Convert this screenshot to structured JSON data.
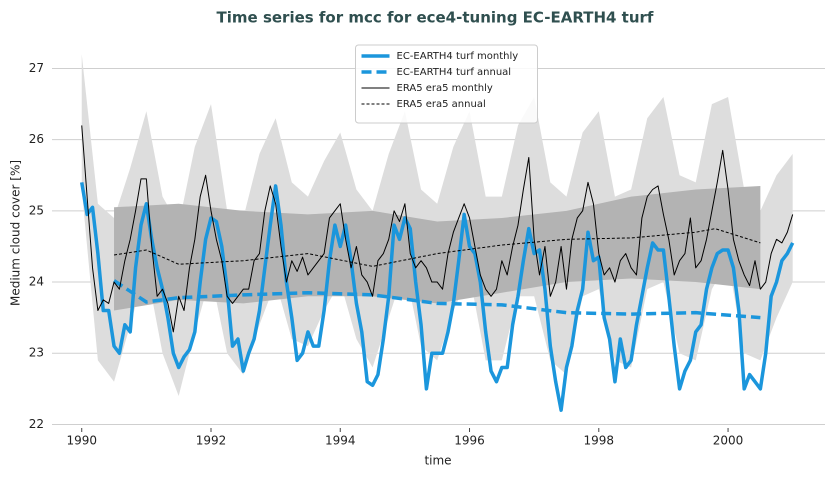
{
  "chart_data": {
    "type": "line",
    "title": "Time series for mcc for ece4-tuning EC-EARTH4 turf",
    "x_label": "time",
    "y_label": "Medium cloud cover [%]",
    "xlim": [
      1989.54,
      2001.5
    ],
    "ylim": [
      21.95,
      27.4
    ],
    "xticks": [
      1990,
      1992,
      1994,
      1996,
      1998,
      2000
    ],
    "yticks": [
      22,
      23,
      24,
      25,
      26,
      27
    ],
    "grid": true,
    "legend": "upper center",
    "bands": [
      {
        "color": "#dddddd",
        "x": [
          1990,
          1990.25,
          1990.5,
          1990.75,
          1991,
          1991.25,
          1991.5,
          1991.75,
          1992,
          1992.25,
          1992.5,
          1992.75,
          1993,
          1993.25,
          1993.5,
          1993.75,
          1994,
          1994.25,
          1994.5,
          1994.75,
          1995,
          1995.25,
          1995.5,
          1995.75,
          1996,
          1996.25,
          1996.5,
          1996.75,
          1997,
          1997.25,
          1997.5,
          1997.75,
          1998,
          1998.25,
          1998.5,
          1998.75,
          1999,
          1999.25,
          1999.5,
          1999.75,
          2000,
          2000.25,
          2000.5,
          2000.75,
          2001
        ],
        "upper": [
          27.2,
          25.1,
          24.9,
          25.6,
          26.4,
          25.2,
          24.8,
          25.9,
          26.5,
          25.0,
          24.9,
          25.8,
          26.3,
          25.4,
          25.2,
          25.7,
          26.1,
          25.3,
          25.0,
          25.8,
          26.4,
          25.3,
          25.1,
          25.9,
          26.4,
          25.2,
          25.2,
          26.2,
          26.6,
          25.4,
          25.2,
          26.1,
          26.4,
          25.2,
          25.3,
          26.3,
          26.6,
          25.5,
          25.4,
          26.5,
          26.6,
          25.3,
          25.0,
          25.5,
          25.8
        ],
        "lower": [
          25.3,
          22.9,
          22.6,
          23.4,
          24.2,
          23.0,
          22.4,
          23.3,
          24.1,
          23.0,
          22.7,
          23.4,
          24.0,
          23.2,
          23.1,
          23.6,
          24.0,
          23.2,
          22.8,
          23.5,
          24.2,
          23.1,
          22.9,
          23.6,
          24.1,
          22.9,
          22.9,
          23.8,
          23.8,
          22.9,
          22.7,
          23.8,
          23.9,
          22.9,
          22.8,
          23.9,
          24.0,
          23.0,
          22.9,
          23.9,
          24.3,
          23.0,
          22.9,
          23.5,
          24.0
        ]
      },
      {
        "color": "#b3b3b3",
        "x": [
          1990.5,
          1991.5,
          1992.5,
          1993.5,
          1994.5,
          1995.5,
          1996.5,
          1997.5,
          1998.5,
          1999.5,
          2000.5
        ],
        "upper": [
          25.05,
          25.1,
          25.0,
          24.95,
          25.0,
          24.85,
          24.9,
          25.0,
          25.2,
          25.3,
          25.35
        ],
        "lower": [
          23.6,
          23.75,
          23.7,
          23.8,
          23.8,
          23.7,
          23.85,
          24.0,
          24.05,
          24.0,
          23.9
        ]
      }
    ],
    "series": [
      {
        "name": "EC-EARTH4 turf monthly",
        "color": "#1b96dc",
        "width": 3.5,
        "style": "solid",
        "x": [
          1990,
          1990.083,
          1990.167,
          1990.25,
          1990.333,
          1990.417,
          1990.5,
          1990.583,
          1990.667,
          1990.75,
          1990.833,
          1990.917,
          1991,
          1991.083,
          1991.167,
          1991.25,
          1991.333,
          1991.417,
          1991.5,
          1991.583,
          1991.667,
          1991.75,
          1991.833,
          1991.917,
          1992,
          1992.083,
          1992.167,
          1992.25,
          1992.333,
          1992.417,
          1992.5,
          1992.583,
          1992.667,
          1992.75,
          1992.833,
          1992.917,
          1993,
          1993.083,
          1993.167,
          1993.25,
          1993.333,
          1993.417,
          1993.5,
          1993.583,
          1993.667,
          1993.75,
          1993.833,
          1993.917,
          1994,
          1994.083,
          1994.167,
          1994.25,
          1994.333,
          1994.417,
          1994.5,
          1994.583,
          1994.667,
          1994.75,
          1994.833,
          1994.917,
          1995,
          1995.083,
          1995.167,
          1995.25,
          1995.333,
          1995.417,
          1995.5,
          1995.583,
          1995.667,
          1995.75,
          1995.833,
          1995.917,
          1996,
          1996.083,
          1996.167,
          1996.25,
          1996.333,
          1996.417,
          1996.5,
          1996.583,
          1996.667,
          1996.75,
          1996.833,
          1996.917,
          1997,
          1997.083,
          1997.167,
          1997.25,
          1997.333,
          1997.417,
          1997.5,
          1997.583,
          1997.667,
          1997.75,
          1997.833,
          1997.917,
          1998,
          1998.083,
          1998.167,
          1998.25,
          1998.333,
          1998.417,
          1998.5,
          1998.583,
          1998.667,
          1998.75,
          1998.833,
          1998.917,
          1999,
          1999.083,
          1999.167,
          1999.25,
          1999.333,
          1999.417,
          1999.5,
          1999.583,
          1999.667,
          1999.75,
          1999.833,
          1999.917,
          2000,
          2000.083,
          2000.167,
          2000.25,
          2000.333,
          2000.417,
          2000.5,
          2000.583,
          2000.667,
          2000.75,
          2000.833,
          2000.917,
          2001
        ],
        "values": [
          25.4,
          24.95,
          25.05,
          24.4,
          23.6,
          23.6,
          23.1,
          23.0,
          23.4,
          23.3,
          24.2,
          24.8,
          25.1,
          24.6,
          24.2,
          23.9,
          23.5,
          23.0,
          22.8,
          22.95,
          23.05,
          23.3,
          24.0,
          24.6,
          24.9,
          24.85,
          24.5,
          23.9,
          23.1,
          23.2,
          22.75,
          23.0,
          23.2,
          23.6,
          24.2,
          24.8,
          25.35,
          24.8,
          24.0,
          23.5,
          22.9,
          23.0,
          23.3,
          23.1,
          23.1,
          23.6,
          24.3,
          24.8,
          24.5,
          24.8,
          24.3,
          23.7,
          23.3,
          22.6,
          22.55,
          22.7,
          23.2,
          23.8,
          24.8,
          24.6,
          24.9,
          24.75,
          24.0,
          23.4,
          22.5,
          23.0,
          23.0,
          23.0,
          23.3,
          23.7,
          24.3,
          24.95,
          24.5,
          24.4,
          24.0,
          23.3,
          22.75,
          22.6,
          22.8,
          22.8,
          23.4,
          23.8,
          24.3,
          24.75,
          24.4,
          24.45,
          23.9,
          23.1,
          22.6,
          22.2,
          22.8,
          23.1,
          23.6,
          23.9,
          24.7,
          24.3,
          24.35,
          23.5,
          23.2,
          22.6,
          23.2,
          22.8,
          22.9,
          23.4,
          23.8,
          24.2,
          24.55,
          24.45,
          24.45,
          23.8,
          23.1,
          22.5,
          22.75,
          22.9,
          23.3,
          23.4,
          23.9,
          24.2,
          24.4,
          24.45,
          24.45,
          24.2,
          23.6,
          22.5,
          22.7,
          22.6,
          22.5,
          23.0,
          23.8,
          24.0,
          24.3,
          24.4,
          24.55
        ]
      },
      {
        "name": "EC-EARTH4 turf annual",
        "color": "#1b96dc",
        "width": 3.5,
        "style": "dashed",
        "x": [
          1990.5,
          1991,
          1991.5,
          1992.5,
          1993.5,
          1994.5,
          1995.5,
          1996.5,
          1997.5,
          1998.5,
          1999.5,
          2000.5
        ],
        "values": [
          24.02,
          23.72,
          23.78,
          23.82,
          23.85,
          23.82,
          23.7,
          23.68,
          23.57,
          23.55,
          23.57,
          23.5
        ]
      },
      {
        "name": "ERA5 era5 monthly",
        "color": "#000000",
        "width": 1,
        "style": "solid",
        "x": [
          1990,
          1990.083,
          1990.167,
          1990.25,
          1990.333,
          1990.417,
          1990.5,
          1990.583,
          1990.667,
          1990.75,
          1990.833,
          1990.917,
          1991,
          1991.083,
          1991.167,
          1991.25,
          1991.333,
          1991.417,
          1991.5,
          1991.583,
          1991.667,
          1991.75,
          1991.833,
          1991.917,
          1992,
          1992.083,
          1992.167,
          1992.25,
          1992.333,
          1992.417,
          1992.5,
          1992.583,
          1992.667,
          1992.75,
          1992.833,
          1992.917,
          1993,
          1993.083,
          1993.167,
          1993.25,
          1993.333,
          1993.417,
          1993.5,
          1993.583,
          1993.667,
          1993.75,
          1993.833,
          1993.917,
          1994,
          1994.083,
          1994.167,
          1994.25,
          1994.333,
          1994.417,
          1994.5,
          1994.583,
          1994.667,
          1994.75,
          1994.833,
          1994.917,
          1995,
          1995.083,
          1995.167,
          1995.25,
          1995.333,
          1995.417,
          1995.5,
          1995.583,
          1995.667,
          1995.75,
          1995.833,
          1995.917,
          1996,
          1996.083,
          1996.167,
          1996.25,
          1996.333,
          1996.417,
          1996.5,
          1996.583,
          1996.667,
          1996.75,
          1996.833,
          1996.917,
          1997,
          1997.083,
          1997.167,
          1997.25,
          1997.333,
          1997.417,
          1997.5,
          1997.583,
          1997.667,
          1997.75,
          1997.833,
          1997.917,
          1998,
          1998.083,
          1998.167,
          1998.25,
          1998.333,
          1998.417,
          1998.5,
          1998.583,
          1998.667,
          1998.75,
          1998.833,
          1998.917,
          1999,
          1999.083,
          1999.167,
          1999.25,
          1999.333,
          1999.417,
          1999.5,
          1999.583,
          1999.667,
          1999.75,
          1999.833,
          1999.917,
          2000,
          2000.083,
          2000.167,
          2000.25,
          2000.333,
          2000.417,
          2000.5,
          2000.583,
          2000.667,
          2000.75,
          2000.833,
          2000.917,
          2001
        ],
        "values": [
          26.2,
          25.2,
          24.2,
          23.6,
          23.75,
          23.7,
          24.0,
          23.9,
          24.3,
          24.6,
          25.0,
          25.45,
          25.45,
          24.5,
          23.8,
          23.9,
          23.7,
          23.3,
          23.8,
          23.6,
          24.2,
          24.6,
          25.2,
          25.5,
          25.0,
          24.6,
          24.3,
          23.8,
          23.7,
          23.8,
          23.9,
          23.9,
          24.3,
          24.4,
          25.0,
          25.35,
          25.1,
          24.5,
          24.0,
          24.3,
          24.15,
          24.35,
          24.1,
          24.2,
          24.3,
          24.4,
          24.9,
          25.0,
          25.1,
          24.6,
          24.2,
          24.5,
          24.1,
          24.0,
          23.8,
          24.3,
          24.4,
          24.6,
          25.0,
          24.85,
          25.1,
          24.4,
          24.2,
          24.3,
          24.2,
          24.0,
          24.0,
          23.9,
          24.4,
          24.7,
          24.9,
          25.1,
          24.9,
          24.5,
          24.1,
          23.9,
          23.8,
          23.9,
          24.3,
          24.1,
          24.5,
          24.8,
          25.3,
          25.75,
          24.6,
          24.1,
          24.5,
          23.8,
          24.0,
          24.5,
          23.9,
          24.6,
          24.9,
          25.0,
          25.4,
          25.1,
          24.4,
          24.1,
          24.2,
          24.0,
          24.3,
          24.4,
          24.2,
          24.1,
          24.9,
          25.2,
          25.3,
          25.35,
          24.95,
          24.6,
          24.1,
          24.3,
          24.4,
          24.9,
          24.2,
          24.3,
          24.6,
          25.0,
          25.4,
          25.85,
          25.3,
          24.6,
          24.3,
          24.1,
          23.95,
          24.3,
          23.9,
          24.0,
          24.4,
          24.6,
          24.55,
          24.7,
          24.95
        ]
      },
      {
        "name": "ERA5 era5 annual",
        "color": "#000000",
        "width": 1,
        "style": "dashed",
        "x": [
          1990.5,
          1991,
          1991.5,
          1992.5,
          1993.5,
          1994.5,
          1995.5,
          1996.5,
          1997.5,
          1998.5,
          1999.5,
          1999.8,
          2000.5
        ],
        "values": [
          24.38,
          24.45,
          24.25,
          24.3,
          24.4,
          24.22,
          24.4,
          24.52,
          24.6,
          24.62,
          24.7,
          24.75,
          24.55
        ]
      }
    ]
  }
}
